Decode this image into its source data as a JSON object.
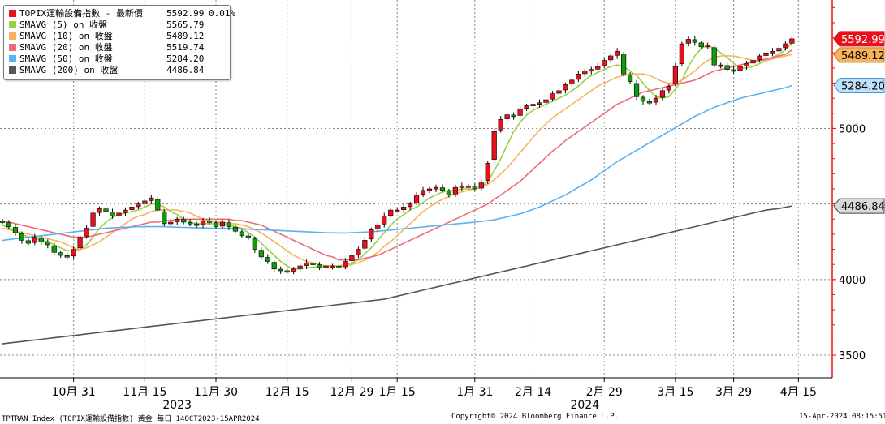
{
  "chart_data": {
    "type": "candlestick",
    "ylim": [
      3350,
      5850
    ],
    "yticks": [
      3500,
      4000,
      4500,
      5000
    ],
    "x_ticks": [
      {
        "label": "10月 31",
        "i": 11
      },
      {
        "label": "11月 15",
        "i": 22
      },
      {
        "label": "11月 30",
        "i": 33
      },
      {
        "label": "12月 15",
        "i": 44
      },
      {
        "label": "12月 29",
        "i": 54
      },
      {
        "label": "1月 15",
        "i": 61
      },
      {
        "label": "1月 31",
        "i": 73
      },
      {
        "label": "2月 14",
        "i": 82
      },
      {
        "label": "2月 29",
        "i": 93
      },
      {
        "label": "3月 15",
        "i": 104
      },
      {
        "label": "3月 29",
        "i": 113
      },
      {
        "label": "4月 15",
        "i": 123
      }
    ],
    "year_labels": [
      {
        "label": "2023",
        "i": 27
      },
      {
        "label": "2024",
        "i": 90
      }
    ],
    "close": [
      4380,
      4350,
      4310,
      4260,
      4240,
      4280,
      4250,
      4230,
      4180,
      4160,
      4150,
      4200,
      4280,
      4340,
      4440,
      4470,
      4450,
      4420,
      4440,
      4460,
      4480,
      4500,
      4520,
      4540,
      4460,
      4370,
      4380,
      4400,
      4380,
      4370,
      4360,
      4390,
      4380,
      4350,
      4380,
      4350,
      4320,
      4290,
      4280,
      4200,
      4150,
      4120,
      4070,
      4060,
      4050,
      4070,
      4090,
      4110,
      4100,
      4080,
      4090,
      4090,
      4080,
      4120,
      4160,
      4200,
      4260,
      4330,
      4360,
      4420,
      4460,
      4460,
      4480,
      4500,
      4560,
      4590,
      4600,
      4610,
      4590,
      4560,
      4610,
      4620,
      4620,
      4600,
      4640,
      4770,
      4980,
      5060,
      5090,
      5080,
      5130,
      5150,
      5160,
      5170,
      5190,
      5230,
      5250,
      5290,
      5320,
      5360,
      5380,
      5390,
      5410,
      5450,
      5480,
      5510,
      5360,
      5310,
      5210,
      5180,
      5170,
      5200,
      5250,
      5280,
      5410,
      5560,
      5590,
      5570,
      5540,
      5550,
      5420,
      5420,
      5390,
      5380,
      5410,
      5430,
      5450,
      5480,
      5500,
      5510,
      5530,
      5560,
      5592.99
    ],
    "series": [
      {
        "name": "SMAVG (5)",
        "color": "#94d148",
        "values": [
          4360,
          4340,
          4320,
          4300,
          4280,
          4270,
          4260,
          4250,
          4230,
          4210,
          4190,
          4190,
          4200,
          4230,
          4280,
          4340,
          4380,
          4410,
          4430,
          4440,
          4450,
          4460,
          4480,
          4500,
          4500,
          4480,
          4450,
          4430,
          4400,
          4380,
          4370,
          4370,
          4370,
          4370,
          4370,
          4360,
          4350,
          4340,
          4310,
          4280,
          4240,
          4200,
          4160,
          4120,
          4090,
          4070,
          4070,
          4080,
          4080,
          4090,
          4090,
          4090,
          4090,
          4100,
          4110,
          4130,
          4170,
          4210,
          4260,
          4310,
          4360,
          4400,
          4430,
          4460,
          4480,
          4510,
          4540,
          4560,
          4580,
          4590,
          4590,
          4600,
          4600,
          4600,
          4610,
          4650,
          4720,
          4800,
          4890,
          4980,
          5040,
          5090,
          5120,
          5140,
          5160,
          5180,
          5200,
          5220,
          5250,
          5280,
          5320,
          5350,
          5370,
          5390,
          5410,
          5420,
          5410,
          5380,
          5350,
          5300,
          5250,
          5210,
          5200,
          5210,
          5260,
          5320,
          5410,
          5480,
          5530,
          5550,
          5530,
          5500,
          5470,
          5430,
          5400,
          5400,
          5410,
          5430,
          5450,
          5470,
          5490,
          5520,
          5565.79
        ]
      },
      {
        "name": "SMAVG (10)",
        "color": "#f5b35b",
        "values": [
          4340,
          4330,
          4320,
          4310,
          4300,
          4290,
          4280,
          4270,
          4260,
          4250,
          4230,
          4210,
          4200,
          4210,
          4230,
          4250,
          4280,
          4310,
          4340,
          4370,
          4400,
          4420,
          4430,
          4450,
          4460,
          4460,
          4460,
          4460,
          4450,
          4440,
          4420,
          4400,
          4390,
          4380,
          4380,
          4370,
          4370,
          4360,
          4350,
          4330,
          4310,
          4280,
          4250,
          4220,
          4190,
          4160,
          4140,
          4120,
          4110,
          4100,
          4090,
          4090,
          4090,
          4090,
          4100,
          4110,
          4130,
          4150,
          4180,
          4220,
          4250,
          4290,
          4330,
          4370,
          4410,
          4450,
          4480,
          4510,
          4530,
          4550,
          4570,
          4580,
          4590,
          4600,
          4610,
          4630,
          4660,
          4700,
          4740,
          4790,
          4840,
          4890,
          4940,
          4990,
          5030,
          5070,
          5100,
          5130,
          5160,
          5190,
          5220,
          5250,
          5280,
          5300,
          5320,
          5340,
          5350,
          5360,
          5360,
          5360,
          5350,
          5330,
          5310,
          5300,
          5300,
          5320,
          5350,
          5380,
          5420,
          5450,
          5470,
          5480,
          5480,
          5480,
          5470,
          5460,
          5450,
          5450,
          5450,
          5460,
          5470,
          5480,
          5489.12
        ]
      },
      {
        "name": "SMAVG (20)",
        "color": "#ee6b79",
        "values": [
          4390,
          4380,
          4370,
          4360,
          4350,
          4340,
          4330,
          4320,
          4310,
          4300,
          4290,
          4280,
          4280,
          4280,
          4290,
          4300,
          4310,
          4320,
          4330,
          4340,
          4350,
          4360,
          4370,
          4380,
          4380,
          4390,
          4390,
          4400,
          4400,
          4400,
          4400,
          4400,
          4400,
          4400,
          4400,
          4400,
          4390,
          4390,
          4380,
          4370,
          4360,
          4340,
          4320,
          4300,
          4280,
          4260,
          4240,
          4220,
          4200,
          4180,
          4160,
          4150,
          4130,
          4130,
          4130,
          4130,
          4140,
          4150,
          4160,
          4180,
          4200,
          4220,
          4240,
          4260,
          4280,
          4300,
          4320,
          4340,
          4360,
          4380,
          4400,
          4420,
          4440,
          4460,
          4480,
          4500,
          4530,
          4560,
          4590,
          4620,
          4650,
          4690,
          4730,
          4770,
          4810,
          4850,
          4880,
          4920,
          4950,
          4980,
          5010,
          5040,
          5070,
          5100,
          5130,
          5160,
          5180,
          5200,
          5220,
          5240,
          5250,
          5260,
          5270,
          5280,
          5290,
          5300,
          5310,
          5320,
          5340,
          5360,
          5380,
          5390,
          5400,
          5410,
          5420,
          5430,
          5440,
          5450,
          5460,
          5470,
          5480,
          5490,
          5519.74
        ]
      },
      {
        "name": "SMAVG (50)",
        "color": "#5ab2ee",
        "values": [
          4260,
          4265,
          4270,
          4275,
          4280,
          4285,
          4290,
          4295,
          4300,
          4305,
          4310,
          4315,
          4320,
          4325,
          4330,
          4335,
          4340,
          4342,
          4344,
          4346,
          4348,
          4350,
          4350,
          4350,
          4350,
          4350,
          4348,
          4346,
          4345,
          4344,
          4343,
          4342,
          4341,
          4340,
          4340,
          4340,
          4338,
          4336,
          4334,
          4332,
          4330,
          4328,
          4326,
          4324,
          4322,
          4320,
          4318,
          4316,
          4314,
          4312,
          4310,
          4309,
          4308,
          4308,
          4310,
          4312,
          4314,
          4316,
          4320,
          4324,
          4328,
          4332,
          4336,
          4340,
          4344,
          4348,
          4352,
          4356,
          4360,
          4364,
          4368,
          4372,
          4376,
          4380,
          4385,
          4390,
          4395,
          4405,
          4415,
          4425,
          4435,
          4450,
          4465,
          4480,
          4500,
          4520,
          4540,
          4560,
          4585,
          4610,
          4635,
          4660,
          4690,
          4720,
          4750,
          4780,
          4805,
          4830,
          4855,
          4880,
          4905,
          4930,
          4955,
          4980,
          5005,
          5030,
          5055,
          5080,
          5100,
          5120,
          5140,
          5155,
          5170,
          5185,
          5200,
          5210,
          5220,
          5230,
          5240,
          5250,
          5260,
          5270,
          5284.2
        ]
      },
      {
        "name": "SMAVG (200)",
        "color": "#555555",
        "values": [
          3575,
          3580,
          3585,
          3590,
          3595,
          3600,
          3605,
          3610,
          3615,
          3620,
          3625,
          3630,
          3635,
          3640,
          3645,
          3650,
          3655,
          3660,
          3665,
          3670,
          3675,
          3680,
          3685,
          3690,
          3695,
          3700,
          3705,
          3710,
          3715,
          3720,
          3725,
          3730,
          3735,
          3740,
          3745,
          3750,
          3755,
          3760,
          3765,
          3770,
          3775,
          3780,
          3785,
          3790,
          3795,
          3800,
          3805,
          3810,
          3815,
          3820,
          3825,
          3830,
          3835,
          3840,
          3845,
          3850,
          3855,
          3860,
          3865,
          3870,
          3880,
          3890,
          3900,
          3910,
          3920,
          3930,
          3940,
          3950,
          3960,
          3970,
          3980,
          3990,
          4000,
          4010,
          4020,
          4030,
          4040,
          4050,
          4060,
          4070,
          4080,
          4090,
          4100,
          4110,
          4120,
          4130,
          4140,
          4150,
          4160,
          4170,
          4180,
          4190,
          4200,
          4210,
          4220,
          4230,
          4240,
          4250,
          4260,
          4270,
          4280,
          4290,
          4300,
          4310,
          4320,
          4330,
          4340,
          4350,
          4360,
          4370,
          4380,
          4390,
          4400,
          4410,
          4420,
          4430,
          4440,
          4450,
          4460,
          4465,
          4470,
          4478,
          4486.84
        ]
      }
    ],
    "last_tags": [
      {
        "text": "5592.99",
        "value": 5592.99,
        "bg": "#e8101a",
        "fg": "#ffffff",
        "border": "#e8101a"
      },
      {
        "text": "5489.12",
        "value": 5489.12,
        "bg": "#f5b35b",
        "fg": "#000000",
        "border": "#c07a20"
      },
      {
        "text": "5284.20",
        "value": 5284.2,
        "bg": "#bfe1fa",
        "fg": "#000000",
        "border": "#4a9ad8"
      },
      {
        "text": "4486.84",
        "value": 4486.84,
        "bg": "#d9d9d9",
        "fg": "#000000",
        "border": "#444444"
      }
    ],
    "colors": {
      "up": "#e8101a",
      "down": "#129a0c",
      "axis": "#e8101a",
      "grid": "#888888"
    }
  },
  "legend": {
    "rows": [
      {
        "name": "TOPIX運輸設備指數 - 最新價",
        "value": "5592.99",
        "change": "0.01%",
        "color": "#e8101a"
      },
      {
        "name": "SMAVG (5)  on 收盤",
        "value": "5565.79",
        "color": "#94d148"
      },
      {
        "name": "SMAVG (10)  on 收盤",
        "value": "5489.12",
        "color": "#f5b35b"
      },
      {
        "name": "SMAVG (20)  on 收盤",
        "value": "5519.74",
        "color": "#ee6b79"
      },
      {
        "name": "SMAVG (50)  on 收盤",
        "value": "5284.20",
        "color": "#5ab2ee"
      },
      {
        "name": "SMAVG (200)  on 收盤",
        "value": "4486.84",
        "color": "#555555"
      }
    ]
  },
  "footer": {
    "left": "TPTRAN Index (TOPIX運輸設備指數) 黃金  每日 14OCT2023-15APR2024",
    "center": "Copyright© 2024 Bloomberg Finance L.P.",
    "right": "15-Apr-2024 08:15:51"
  }
}
